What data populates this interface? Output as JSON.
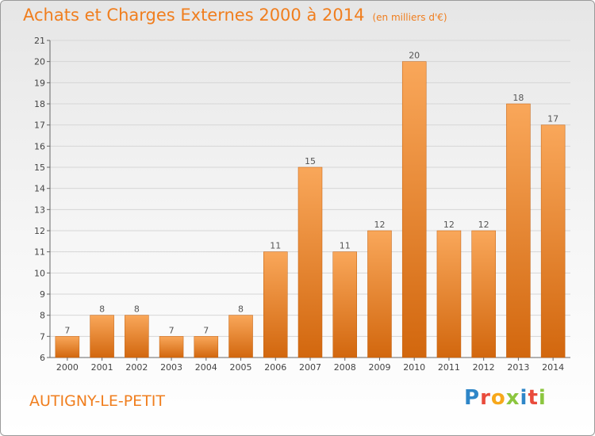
{
  "title": "Achats et Charges Externes 2000 à 2014",
  "unit_note": "(en milliers d'€)",
  "town": "AUTIGNY-LE-PETIT",
  "logo": {
    "letters": [
      "P",
      "r",
      "o",
      "x",
      "i",
      "t",
      "i"
    ],
    "colors": [
      "#2e86c8",
      "#e94b3c",
      "#f7a81b",
      "#8cc63f",
      "#2e86c8",
      "#e94b3c",
      "#8cc63f"
    ]
  },
  "colors": {
    "accent": "#f07e1e",
    "bar_light": "#f7a352",
    "bar_dark": "#d4690f"
  },
  "chart_data": {
    "type": "bar",
    "title": "Achats et Charges Externes 2000 à 2014",
    "subtitle": "(en milliers d'€)",
    "categories": [
      "2000",
      "2001",
      "2002",
      "2003",
      "2004",
      "2005",
      "2006",
      "2007",
      "2008",
      "2009",
      "2010",
      "2011",
      "2012",
      "2013",
      "2014"
    ],
    "values": [
      7,
      8,
      8,
      7,
      7,
      8,
      11,
      15,
      11,
      12,
      20,
      12,
      12,
      18,
      17
    ],
    "data_labels": [
      "7",
      "8",
      "8",
      "7",
      "7",
      "8",
      "11",
      "15",
      "11",
      "12",
      "20",
      "12",
      "12",
      "18",
      "17"
    ],
    "ylim": [
      6,
      21
    ],
    "yticks": [
      6,
      7,
      8,
      9,
      10,
      11,
      12,
      13,
      14,
      15,
      16,
      17,
      18,
      19,
      20,
      21
    ],
    "grid": true,
    "xlabel": "",
    "ylabel": ""
  }
}
